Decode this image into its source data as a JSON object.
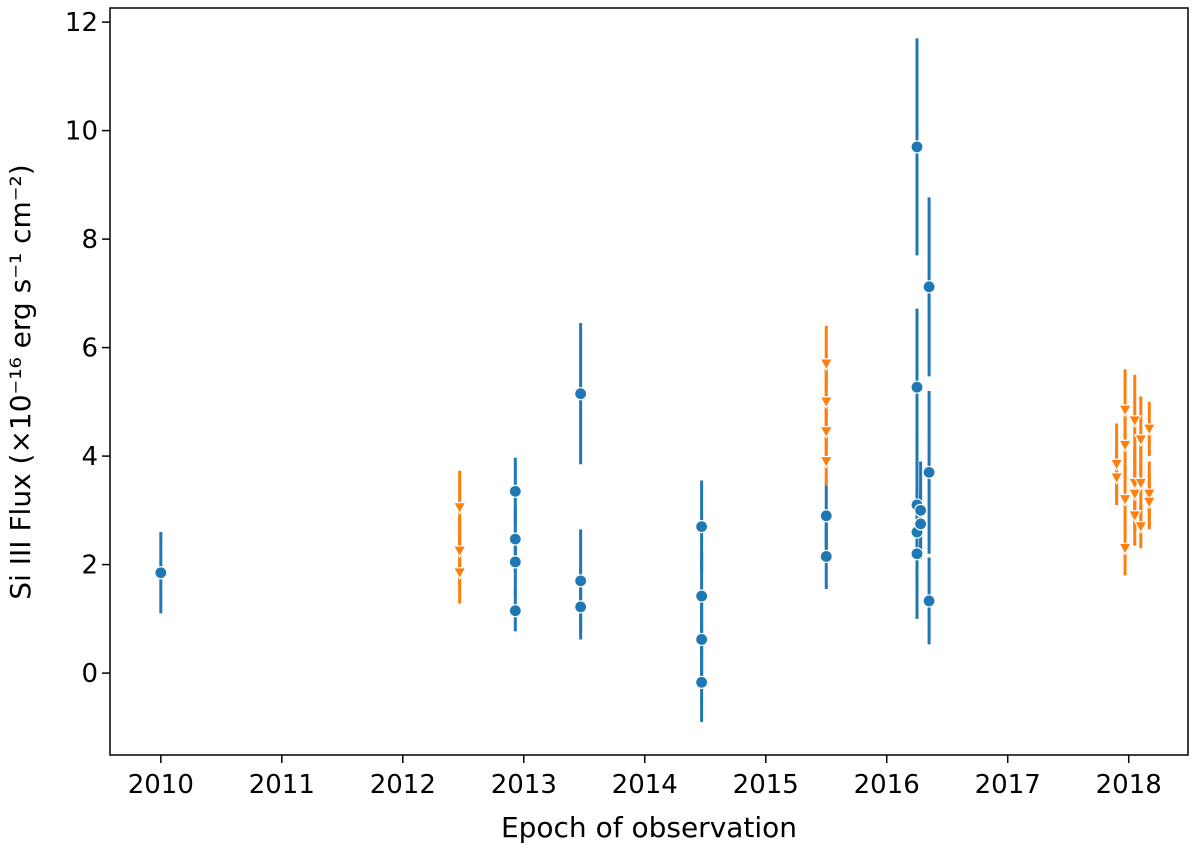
{
  "chart_data": {
    "type": "errorbar",
    "xlabel": "Epoch of observation",
    "ylabel": "Si III Flux (×10⁻¹⁶ erg s⁻¹ cm⁻²)",
    "xlim": [
      2009.58,
      2018.49
    ],
    "ylim": [
      -1.51,
      12.26
    ],
    "xticks": [
      2010,
      2011,
      2012,
      2013,
      2014,
      2015,
      2016,
      2017,
      2018
    ],
    "yticks": [
      0,
      2,
      4,
      6,
      8,
      10,
      12
    ],
    "grid": false,
    "series": [
      {
        "color": "#1f77b4",
        "marker": "circle",
        "x": [
          2010.0,
          2012.93,
          2012.93,
          2012.93,
          2012.93,
          2013.47,
          2013.47,
          2013.47,
          2014.47,
          2014.47,
          2014.47,
          2014.47,
          2015.5,
          2015.5,
          2016.25,
          2016.25,
          2016.25,
          2016.25,
          2016.25,
          2016.28,
          2016.28,
          2016.35,
          2016.35,
          2016.35
        ],
        "values": [
          1.85,
          3.35,
          2.47,
          2.05,
          1.15,
          5.15,
          1.7,
          1.22,
          2.7,
          1.42,
          0.62,
          -0.17,
          2.9,
          2.15,
          9.7,
          5.27,
          3.1,
          2.6,
          2.2,
          3.0,
          2.75,
          7.12,
          3.7,
          1.33
        ],
        "errors": [
          0.75,
          0.62,
          0.6,
          0.6,
          0.38,
          1.3,
          0.95,
          0.6,
          0.85,
          0.8,
          0.8,
          0.73,
          0.6,
          0.6,
          2.0,
          1.45,
          1.4,
          0.9,
          1.2,
          0.9,
          0.6,
          1.65,
          1.5,
          0.8
        ]
      },
      {
        "color": "#ff7f0e",
        "marker": "triangle-down",
        "x": [
          2012.47,
          2012.47,
          2012.47,
          2015.5,
          2015.5,
          2015.5,
          2015.5,
          2017.9,
          2017.9,
          2017.97,
          2017.97,
          2017.97,
          2017.97,
          2018.05,
          2018.05,
          2018.05,
          2018.05,
          2018.1,
          2018.1,
          2018.1,
          2018.17,
          2018.17,
          2018.17
        ],
        "values": [
          3.05,
          2.25,
          1.85,
          5.7,
          5.0,
          4.45,
          3.9,
          3.85,
          3.6,
          4.85,
          4.2,
          3.2,
          2.3,
          4.65,
          3.5,
          3.3,
          2.9,
          4.3,
          3.5,
          2.7,
          4.5,
          3.3,
          3.15
        ],
        "errors": [
          0.68,
          0.6,
          0.57,
          0.7,
          0.7,
          0.65,
          0.45,
          0.75,
          0.5,
          0.75,
          0.6,
          0.6,
          0.5,
          0.85,
          0.7,
          0.7,
          0.55,
          0.8,
          0.7,
          0.4,
          0.5,
          0.6,
          0.5
        ]
      }
    ]
  }
}
